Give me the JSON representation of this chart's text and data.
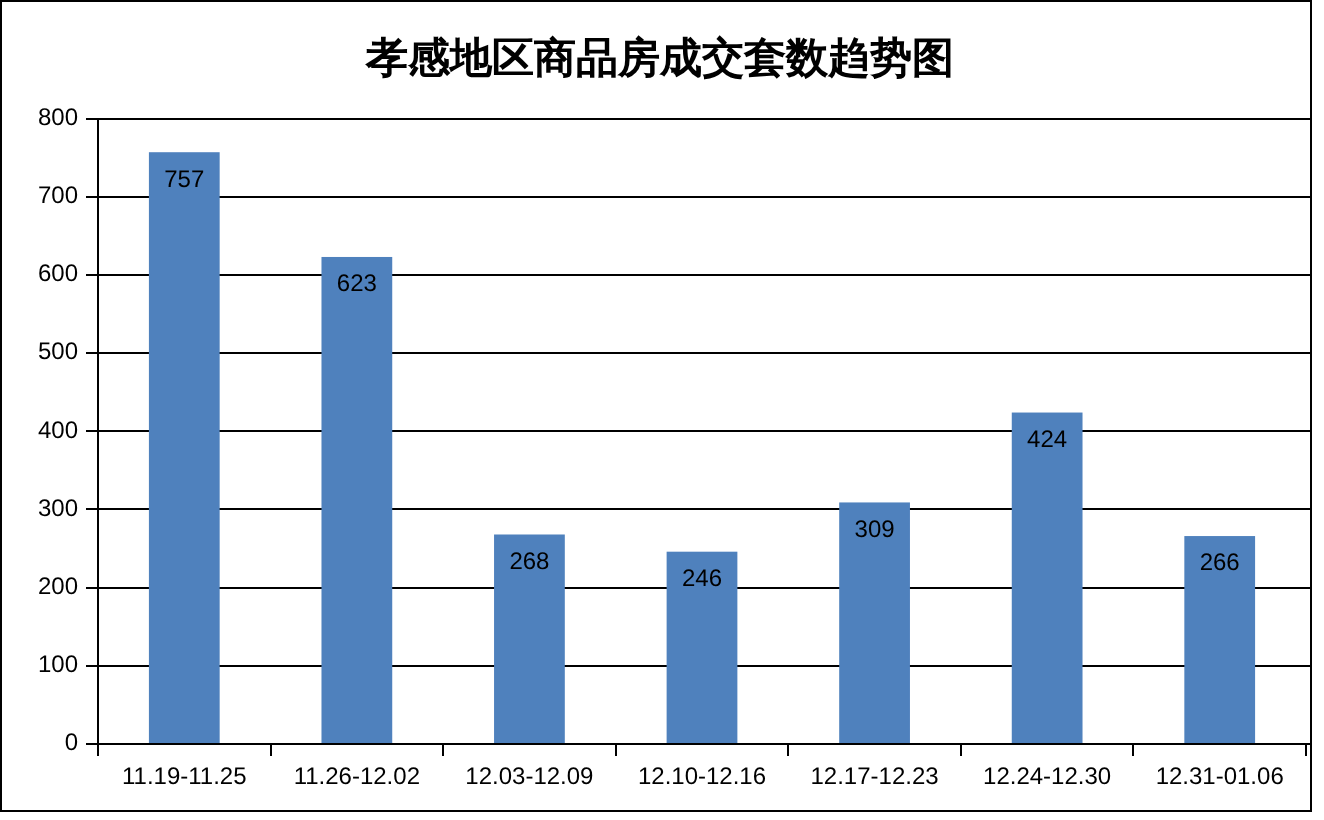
{
  "chart_data": {
    "type": "bar",
    "title": "孝感地区商品房成交套数趋势图",
    "categories": [
      "11.19-11.25",
      "11.26-12.02",
      "12.03-12.09",
      "12.10-12.16",
      "12.17-12.23",
      "12.24-12.30",
      "12.31-01.06"
    ],
    "values": [
      757,
      623,
      268,
      246,
      309,
      424,
      266
    ],
    "color": "#4f81bd",
    "ylim": [
      0,
      800
    ],
    "yticks": [
      0,
      100,
      200,
      300,
      400,
      500,
      600,
      700,
      800
    ],
    "grid": "y",
    "data_labels": true
  }
}
